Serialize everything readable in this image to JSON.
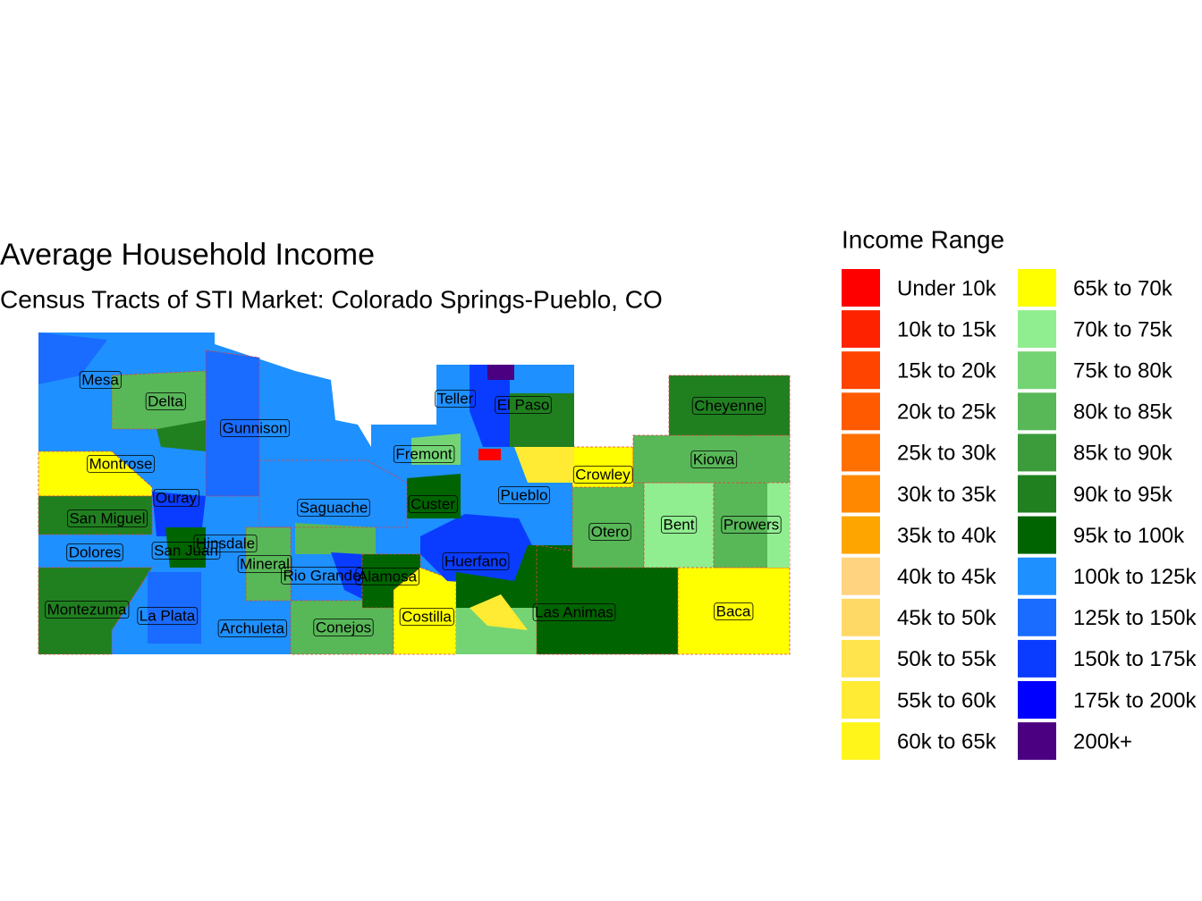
{
  "title": "Average Household Income",
  "subtitle": "Census Tracts of STI Market: Colorado Springs-Pueblo, CO",
  "legend": {
    "title": "Income Range",
    "items": [
      {
        "label": "Under 10k",
        "color": "#FF0000"
      },
      {
        "label": "10k to 15k",
        "color": "#FF2200"
      },
      {
        "label": "15k to 20k",
        "color": "#FF4400"
      },
      {
        "label": "20k to 25k",
        "color": "#FF5A00"
      },
      {
        "label": "25k to 30k",
        "color": "#FF7000"
      },
      {
        "label": "30k to 35k",
        "color": "#FF8800"
      },
      {
        "label": "35k to 40k",
        "color": "#FFA500"
      },
      {
        "label": "40k to 45k",
        "color": "#FFD37F"
      },
      {
        "label": "45k to 50k",
        "color": "#FFD966"
      },
      {
        "label": "50k to 55k",
        "color": "#FFE44D"
      },
      {
        "label": "55k to 60k",
        "color": "#FFEB33"
      },
      {
        "label": "60k to 65k",
        "color": "#FFF51A"
      },
      {
        "label": "65k to 70k",
        "color": "#FFFF00"
      },
      {
        "label": "70k to 75k",
        "color": "#90EE90"
      },
      {
        "label": "75k to 80k",
        "color": "#74D474"
      },
      {
        "label": "80k to 85k",
        "color": "#58B858"
      },
      {
        "label": "85k to 90k",
        "color": "#3C9C3C"
      },
      {
        "label": "90k to 95k",
        "color": "#208020"
      },
      {
        "label": "95k to 100k",
        "color": "#006400"
      },
      {
        "label": "100k to 125k",
        "color": "#1E90FF"
      },
      {
        "label": "125k to 150k",
        "color": "#1A6BFF"
      },
      {
        "label": "150k to 175k",
        "color": "#0A3CFF"
      },
      {
        "label": "175k to 200k",
        "color": "#0000FF"
      },
      {
        "label": "200k+",
        "color": "#4B0082"
      }
    ]
  },
  "counties": [
    "Mesa",
    "Delta",
    "Gunnison",
    "Montrose",
    "Ouray",
    "San Miguel",
    "Dolores",
    "San Juan",
    "Hinsdale",
    "Mineral",
    "Rio Grande",
    "Alamosa",
    "Montezuma",
    "La Plata",
    "Archuleta",
    "Conejos",
    "Costilla",
    "Saguache",
    "Fremont",
    "Teller",
    "El Paso",
    "Custer",
    "Pueblo",
    "Huerfano",
    "Las Animas",
    "Crowley",
    "Otero",
    "Bent",
    "Prowers",
    "Kiowa",
    "Cheyenne",
    "Baca"
  ]
}
